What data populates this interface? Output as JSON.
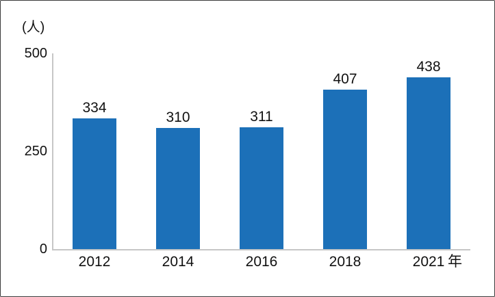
{
  "chart_data": {
    "type": "bar",
    "title": "",
    "unit_label": "(人)",
    "categories": [
      "2012",
      "2014",
      "2016",
      "2018",
      "2021"
    ],
    "values": [
      334,
      310,
      311,
      407,
      438
    ],
    "value_labels": [
      "334",
      "310",
      "311",
      "407",
      "438"
    ],
    "x_axis_suffix": "年",
    "xlabel": "",
    "ylabel": "(人)",
    "yticks": [
      500,
      250,
      0
    ],
    "ylim": [
      0,
      500
    ],
    "bar_color": "#1C70B8",
    "axis_color": "#C6C6C6",
    "text_color": "#111111",
    "grid": false,
    "legend": false
  }
}
